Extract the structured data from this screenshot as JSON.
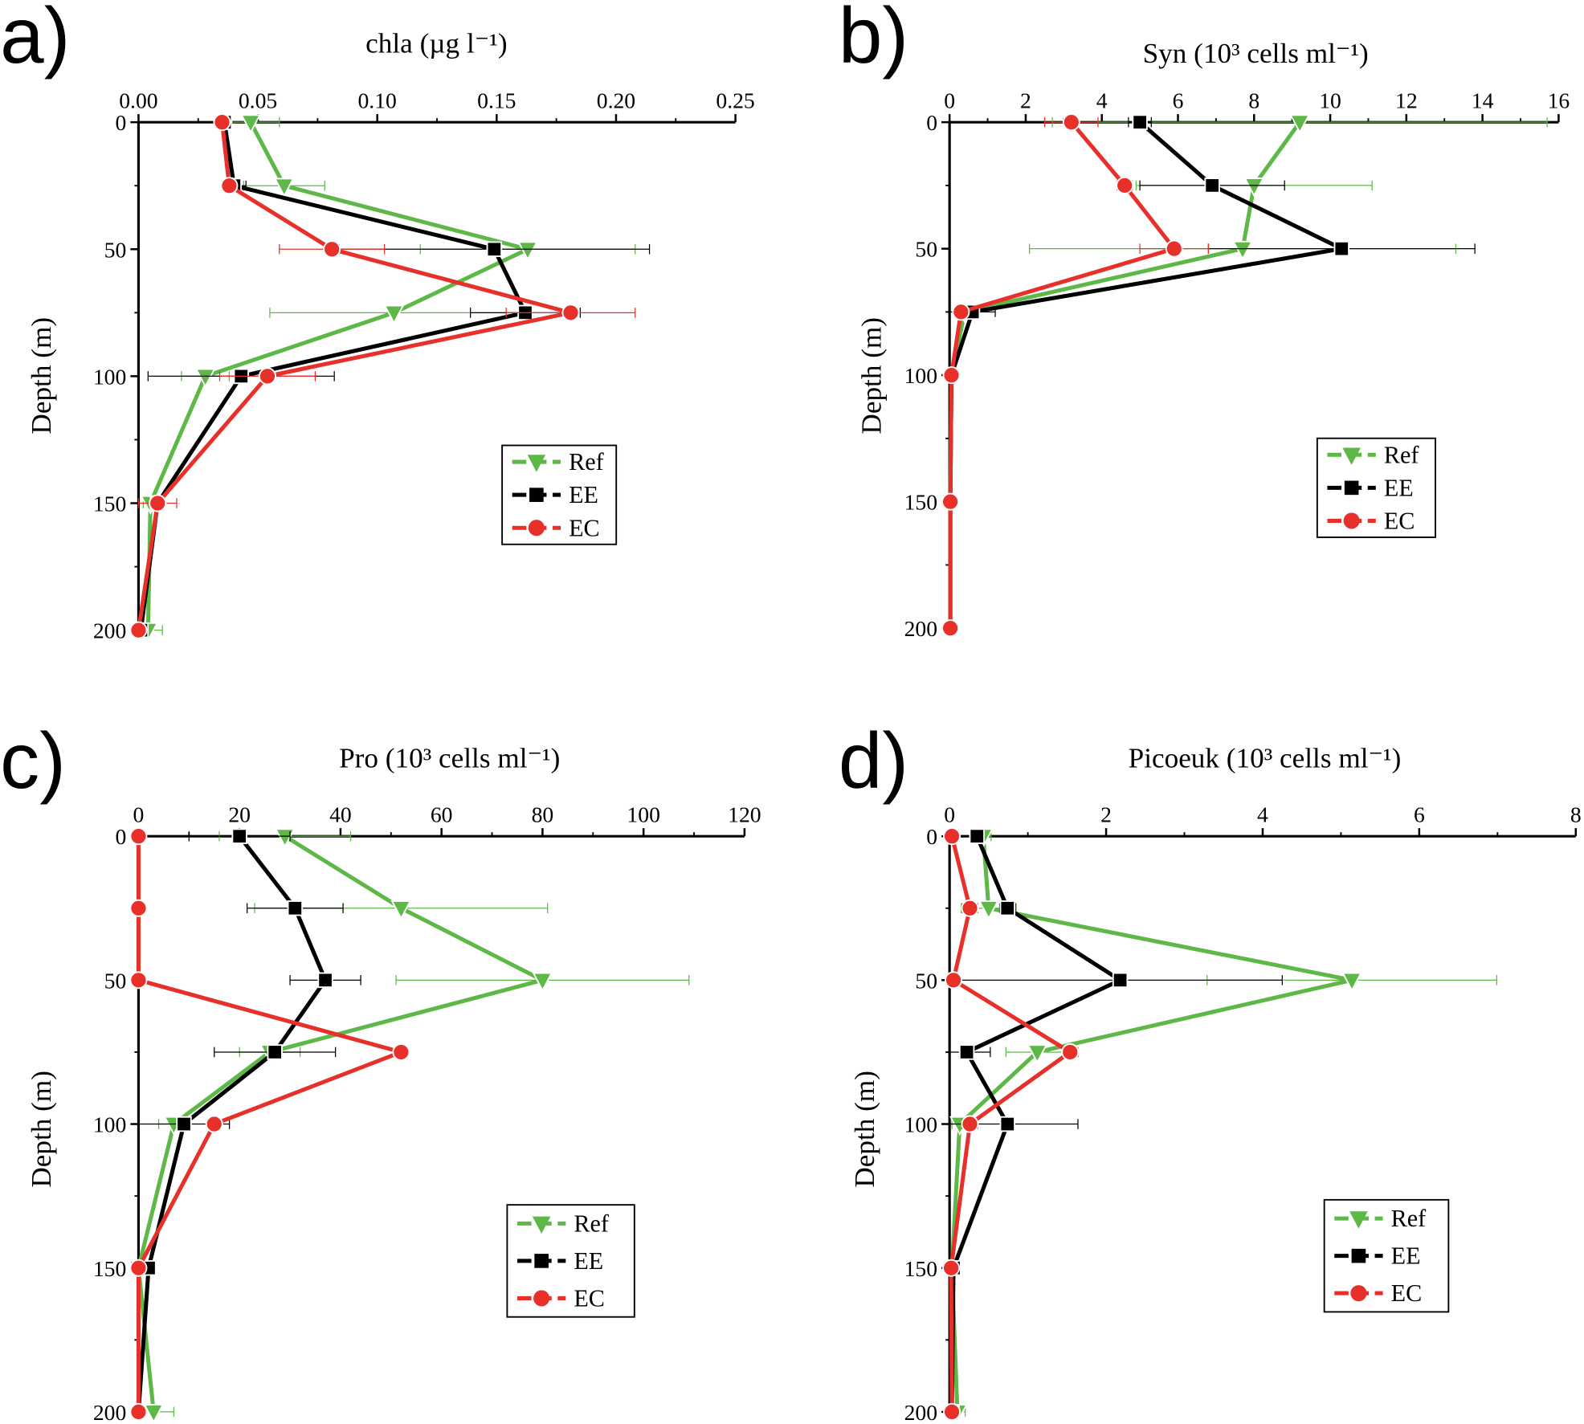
{
  "colors": {
    "Ref": "#5db848",
    "EE": "#000000",
    "EC": "#e8302b"
  },
  "legend": [
    "Ref",
    "EE",
    "EC"
  ],
  "chart_data": [
    {
      "panel_label": "a)",
      "type": "line",
      "title": "chla (µg l⁻¹)",
      "ylabel": "Depth (m)",
      "xlim": [
        0,
        0.25
      ],
      "xticks": [
        "0.00",
        "0.05",
        "0.10",
        "0.15",
        "0.20",
        "0.25"
      ],
      "ylim": [
        0,
        200
      ],
      "yticks": [
        "0",
        "50",
        "100",
        "150",
        "200"
      ],
      "y_inverted": true,
      "depth": [
        0,
        25,
        50,
        75,
        100,
        150,
        200
      ],
      "legend_placement": "center-right",
      "series": [
        {
          "name": "Ref",
          "marker": "triangle-down",
          "values": [
            0.047,
            0.061,
            0.163,
            0.107,
            0.028,
            0.005,
            0.004
          ],
          "xerr": [
            0.012,
            0.017,
            0.045,
            0.052,
            0.01,
            0.003,
            0.006
          ]
        },
        {
          "name": "EE",
          "marker": "square",
          "values": [
            0.036,
            0.04,
            0.149,
            0.162,
            0.043,
            0.008,
            0.001
          ],
          "xerr": [
            0.003,
            0.005,
            0.065,
            0.023,
            0.039,
            0.002,
            0.001
          ]
        },
        {
          "name": "EC",
          "marker": "circle",
          "values": [
            0.035,
            0.038,
            0.081,
            0.181,
            0.054,
            0.008,
            0.0
          ],
          "xerr": [
            0.003,
            0.003,
            0.022,
            0.027,
            0.02,
            0.008,
            0.001
          ]
        }
      ]
    },
    {
      "panel_label": "b)",
      "type": "line",
      "title": "Syn (10³ cells ml⁻¹)",
      "ylabel": "Depth (m)",
      "xlim": [
        0,
        16
      ],
      "xticks": [
        "0",
        "2",
        "4",
        "6",
        "8",
        "10",
        "12",
        "14",
        "16"
      ],
      "ylim": [
        0,
        200
      ],
      "yticks": [
        "0",
        "50",
        "100",
        "150",
        "200"
      ],
      "y_inverted": true,
      "depth": [
        0,
        25,
        50,
        75,
        100,
        150,
        200
      ],
      "legend_placement": "center-right",
      "series": [
        {
          "name": "Ref",
          "marker": "triangle-down",
          "values": [
            9.2,
            8.0,
            7.7,
            0.4,
            0.05,
            0.02,
            0.02
          ],
          "xerr": [
            6.5,
            3.1,
            5.6,
            0.2,
            0.02,
            0.01,
            0.01
          ]
        },
        {
          "name": "EE",
          "marker": "square",
          "values": [
            5.0,
            6.9,
            10.3,
            0.6,
            0.05,
            0.02,
            0.02
          ],
          "xerr": [
            0.3,
            1.9,
            3.5,
            0.6,
            0.02,
            0.01,
            0.01
          ]
        },
        {
          "name": "EC",
          "marker": "circle",
          "values": [
            3.2,
            4.6,
            5.9,
            0.3,
            0.05,
            0.02,
            0.02
          ],
          "xerr": [
            0.7,
            0.2,
            0.9,
            0.1,
            0.02,
            0.01,
            0.01
          ]
        }
      ]
    },
    {
      "panel_label": "c)",
      "type": "line",
      "title": "Pro (10³ cells ml⁻¹)",
      "ylabel": "Depth (m)",
      "xlim": [
        0,
        120
      ],
      "xticks": [
        "0",
        "20",
        "40",
        "60",
        "80",
        "100",
        "120"
      ],
      "ylim": [
        0,
        200
      ],
      "yticks": [
        "0",
        "50",
        "100",
        "150",
        "200"
      ],
      "y_inverted": true,
      "depth": [
        0,
        25,
        50,
        75,
        100,
        150,
        200
      ],
      "legend_placement": "bottom-right",
      "series": [
        {
          "name": "Ref",
          "marker": "triangle-down",
          "values": [
            29,
            52,
            80,
            26,
            7,
            0,
            3
          ],
          "xerr": [
            13,
            29,
            29,
            6,
            3,
            0.5,
            4
          ]
        },
        {
          "name": "EE",
          "marker": "square",
          "values": [
            20,
            31,
            37,
            27,
            9,
            2,
            0
          ],
          "xerr": [
            10,
            9.5,
            7,
            12,
            9,
            1,
            0.5
          ]
        },
        {
          "name": "EC",
          "marker": "circle",
          "values": [
            0,
            0,
            0,
            52,
            15,
            0,
            0
          ],
          "xerr": [
            0.3,
            0.3,
            0.3,
            0.5,
            1,
            0.3,
            0.3
          ]
        }
      ]
    },
    {
      "panel_label": "d)",
      "type": "line",
      "title": "Picoeuk (10³ cells ml⁻¹)",
      "ylabel": "Depth (m)",
      "xlim": [
        0,
        8
      ],
      "xticks": [
        "0",
        "2",
        "4",
        "6",
        "8"
      ],
      "ylim": [
        0,
        200
      ],
      "yticks": [
        "0",
        "50",
        "100",
        "150",
        "200"
      ],
      "y_inverted": true,
      "depth": [
        0,
        25,
        50,
        75,
        100,
        150,
        200
      ],
      "legend_placement": "bottom-right",
      "series": [
        {
          "name": "Ref",
          "marker": "triangle-down",
          "values": [
            0.43,
            0.5,
            5.14,
            1.12,
            0.13,
            0.03,
            0.1
          ],
          "xerr": [
            0.1,
            0.35,
            1.85,
            0.4,
            0.1,
            0.02,
            0.1
          ]
        },
        {
          "name": "EE",
          "marker": "square",
          "values": [
            0.35,
            0.74,
            2.18,
            0.22,
            0.74,
            0.05,
            0.03
          ],
          "xerr": [
            0.05,
            0.1,
            2.07,
            0.3,
            0.9,
            0.03,
            0.02
          ]
        },
        {
          "name": "EC",
          "marker": "circle",
          "values": [
            0.03,
            0.26,
            0.05,
            1.54,
            0.26,
            0.02,
            0.03
          ],
          "xerr": [
            0.02,
            0.1,
            0.03,
            0.1,
            0.1,
            0.02,
            0.02
          ]
        }
      ]
    }
  ]
}
